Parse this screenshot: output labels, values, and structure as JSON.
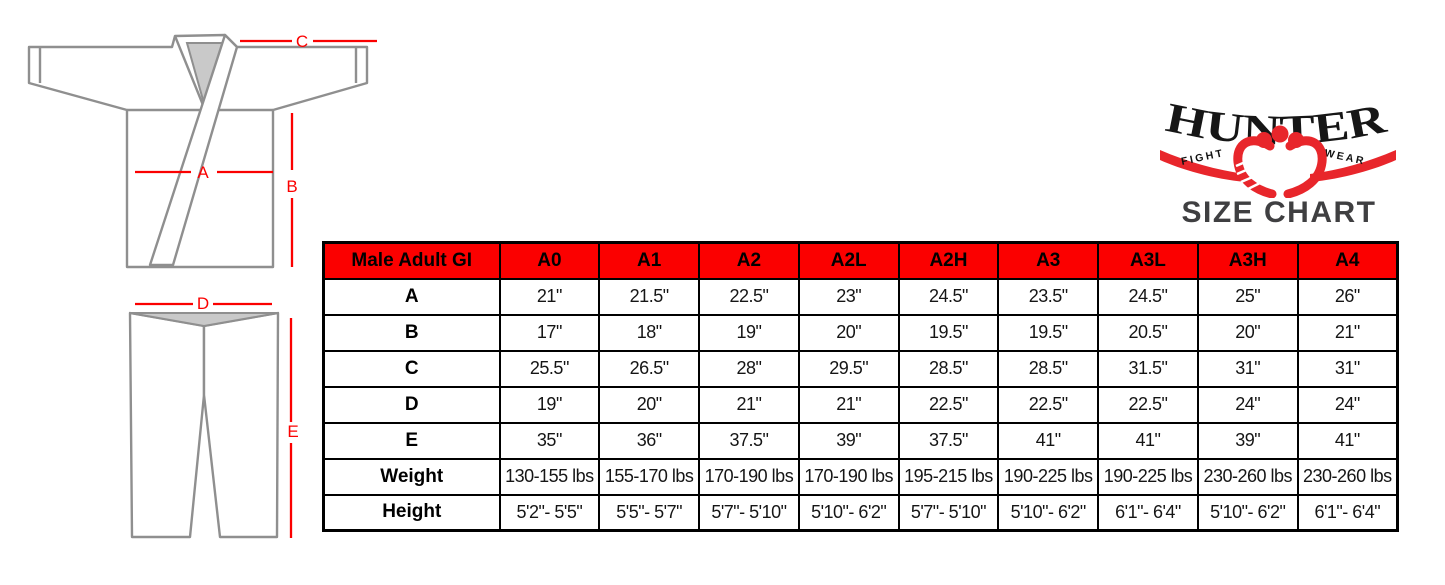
{
  "page": {
    "background": "#ffffff"
  },
  "branding": {
    "logo_text": "HUNTER",
    "logo_left_word": "FIGHT",
    "logo_right_word": "WEAR",
    "title": "SIZE CHART",
    "colors": {
      "logo_black": "#161616",
      "logo_red": "#e8262b",
      "title_gray": "#3f3f41"
    }
  },
  "diagrams": {
    "colors": {
      "measure_line_red": "#fb0000",
      "outline_gray": "#8f8f8f",
      "shade_gray": "#c9c9c9"
    },
    "jacket": {
      "label_a": "A",
      "label_b": "B",
      "label_c": "C"
    },
    "pants": {
      "label_d": "D",
      "label_e": "E"
    }
  },
  "table": {
    "colors": {
      "header_bg": "#fb0000",
      "border": "#000000"
    },
    "header": [
      "Male Adult GI",
      "A0",
      "A1",
      "A2",
      "A2L",
      "A2H",
      "A3",
      "A3L",
      "A3H",
      "A4"
    ],
    "rows": [
      {
        "label": "A",
        "values": [
          "21\"",
          "21.5\"",
          "22.5\"",
          "23\"",
          "24.5\"",
          "23.5\"",
          "24.5\"",
          "25\"",
          "26\""
        ]
      },
      {
        "label": "B",
        "values": [
          "17\"",
          "18\"",
          "19\"",
          "20\"",
          "19.5\"",
          "19.5\"",
          "20.5\"",
          "20\"",
          "21\""
        ]
      },
      {
        "label": "C",
        "values": [
          "25.5\"",
          "26.5\"",
          "28\"",
          "29.5\"",
          "28.5\"",
          "28.5\"",
          "31.5\"",
          "31\"",
          "31\""
        ]
      },
      {
        "label": "D",
        "values": [
          "19\"",
          "20\"",
          "21\"",
          "21\"",
          "22.5\"",
          "22.5\"",
          "22.5\"",
          "24\"",
          "24\""
        ]
      },
      {
        "label": "E",
        "values": [
          "35\"",
          "36\"",
          "37.5\"",
          "39\"",
          "37.5\"",
          "41\"",
          "41\"",
          "39\"",
          "41\""
        ]
      },
      {
        "label": "Weight",
        "values": [
          "130-155 lbs",
          "155-170 lbs",
          "170-190 lbs",
          "170-190 lbs",
          "195-215 lbs",
          "190-225 lbs",
          "190-225 lbs",
          "230-260 lbs",
          "230-260 lbs"
        ]
      },
      {
        "label": "Height",
        "values": [
          "5'2\"- 5'5\"",
          "5'5\"- 5'7\"",
          "5'7\"- 5'10\"",
          "5'10\"- 6'2\"",
          "5'7\"- 5'10\"",
          "5'10\"- 6'2\"",
          "6'1\"- 6'4\"",
          "5'10\"- 6'2\"",
          "6'1\"- 6'4\""
        ]
      }
    ]
  }
}
